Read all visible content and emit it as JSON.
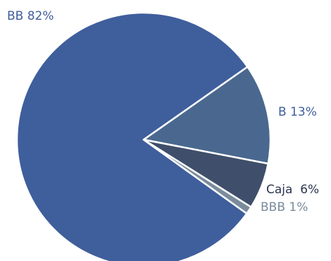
{
  "chart_data": {
    "type": "pie",
    "slices": [
      {
        "label": "BB 82%",
        "category": "BB",
        "value": 82,
        "color": "#3F5E9C",
        "label_color": "#3F5E9C"
      },
      {
        "label": "B 13%",
        "category": "B",
        "value": 13,
        "color": "#4A688F",
        "label_color": "#3F5E9C"
      },
      {
        "label": "Caja  6%",
        "category": "Caja",
        "value": 6,
        "color": "#3F4F6B",
        "label_color": "#2B3650"
      },
      {
        "label": "BBB 1%",
        "category": "BBB",
        "value": 1,
        "color": "#7A8C9C",
        "label_color": "#7A8C9C"
      }
    ],
    "legend": "none"
  }
}
